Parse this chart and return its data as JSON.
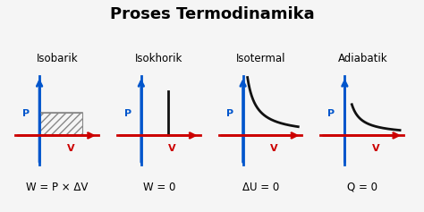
{
  "title": "Proses Termodinamika",
  "title_fontsize": 13,
  "title_fontweight": "bold",
  "diagrams": [
    {
      "name": "Isobarik",
      "equation": "W = P × ΔV",
      "type": "isobarik"
    },
    {
      "name": "Isokhorik",
      "equation": "W = 0",
      "type": "isokhorik"
    },
    {
      "name": "Isotermal",
      "equation": "ΔU = 0",
      "type": "isotermal"
    },
    {
      "name": "Adiabatik",
      "equation": "Q = 0",
      "type": "adiabatik"
    }
  ],
  "axis_color_blue": "#0055CC",
  "axis_color_red": "#CC0000",
  "curve_color": "#111111",
  "bg_color": "#F5F5F5",
  "name_fontsize": 8.5,
  "eq_fontsize": 8.5,
  "axis_label_fontsize": 8
}
